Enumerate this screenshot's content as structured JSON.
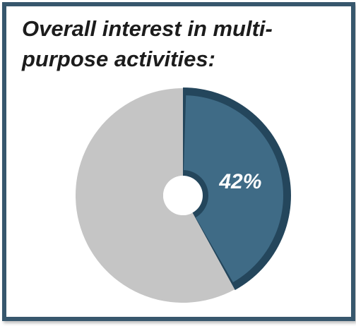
{
  "chart_data": {
    "type": "pie",
    "title": "Overall interest in multi-purpose activities:",
    "values": [
      42,
      58
    ],
    "data_labels": [
      "42%",
      ""
    ],
    "colors": [
      "#3f6b86",
      "#c5c5c5"
    ],
    "legend": "none"
  }
}
